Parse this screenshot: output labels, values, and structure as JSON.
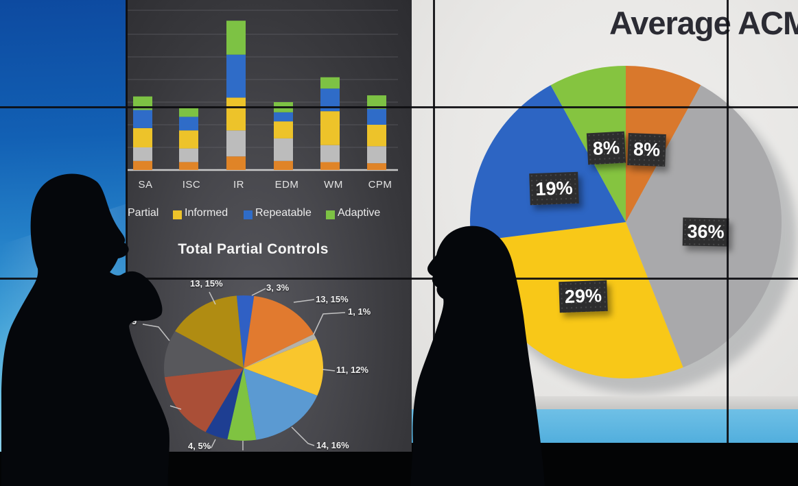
{
  "scene": {
    "kind": "photograph",
    "summary": "Two people silhouetted in front of a video wall of security-metrics charts"
  },
  "chart_data": [
    {
      "type": "bar",
      "stacked": true,
      "title": "",
      "xlabel": "",
      "ylabel": "",
      "axis_note": "y-axis tick labels not visible; values estimated in gridline units (1 unit = 1 gridline spacing)",
      "categories": [
        "SA",
        "ISC",
        "IR",
        "EDM",
        "WM",
        "CPM"
      ],
      "series": [
        {
          "name": "(legend cut off)",
          "color": "#e08427",
          "values": [
            0.4,
            0.35,
            0.6,
            0.4,
            0.35,
            0.3
          ]
        },
        {
          "name": "(legend cut off)",
          "color": "#bcbcbc",
          "values": [
            0.6,
            0.6,
            1.15,
            1.0,
            0.75,
            0.75
          ]
        },
        {
          "name": "Informed",
          "color": "#edc32a",
          "values": [
            0.85,
            0.8,
            1.45,
            0.75,
            1.5,
            0.95
          ]
        },
        {
          "name": "Repeatable",
          "color": "#2f6cc8",
          "values": [
            0.8,
            0.6,
            1.9,
            0.4,
            1.0,
            0.7
          ]
        },
        {
          "name": "Adaptive",
          "color": "#7dc244",
          "values": [
            0.6,
            0.4,
            1.5,
            0.45,
            0.5,
            0.6
          ]
        }
      ],
      "legend_visible": [
        "Partial",
        "Informed",
        "Repeatable",
        "Adaptive"
      ],
      "legend_swatch_colors": [
        "(swatch cut off at screen edge)",
        "#edc32a",
        "#2f6cc8",
        "#7dc244"
      ],
      "grid": true
    },
    {
      "type": "pie",
      "title": "Total Partial Controls",
      "start_angle_deg": -5,
      "slices": [
        {
          "value": 3,
          "label": "3, 3%",
          "color": "#3060c4"
        },
        {
          "value": 13,
          "label": "13, 15%",
          "color": "#e17a2f"
        },
        {
          "value": 1,
          "label": "1, 1%",
          "color": "#b5b2a8"
        },
        {
          "value": 11,
          "label": "11, 12%",
          "color": "#f9c62d"
        },
        {
          "value": 14,
          "label": "14, 16%",
          "color": "#5b9ad2"
        },
        {
          "value": 5,
          "label": "",
          "color": "#7fc341"
        },
        {
          "value": 4,
          "label": "4, 5%",
          "color": "#1e3e92"
        },
        {
          "value": 13,
          "label": "",
          "color": "#aa4f37"
        },
        {
          "value": 9,
          "label": "9",
          "color": "#58585c"
        },
        {
          "value": 13,
          "label": "13, 15%",
          "color": "#b08c12"
        }
      ],
      "label_note": "two slice labels hidden behind silhouette / screen edge; '9' label partially cut off"
    },
    {
      "type": "pie",
      "title": "Average ACM",
      "title_note": "title cut off at right edge of image",
      "start_angle_deg": 0,
      "slices": [
        {
          "value": 8,
          "label": "8%",
          "color": "#d9782c"
        },
        {
          "value": 36,
          "label": "36%",
          "color": "#a9a9ab"
        },
        {
          "value": 29,
          "label": "29%",
          "color": "#f8c818"
        },
        {
          "value": 19,
          "label": "19%",
          "color": "#2d65c3"
        },
        {
          "value": 8,
          "label": "8%",
          "color": "#85c440"
        }
      ]
    }
  ],
  "colors": {
    "wall_blue_screen_top": "#0d4aa0",
    "wall_blue_screen_bottom": "#8fd2ec",
    "dark_panel": "#3a3a3f",
    "white_panel": "#e9e8e6",
    "footer_blue_strip": "#5cb7e2",
    "chip_background": "#2d2d2e",
    "bezel": "#0d0d10"
  }
}
